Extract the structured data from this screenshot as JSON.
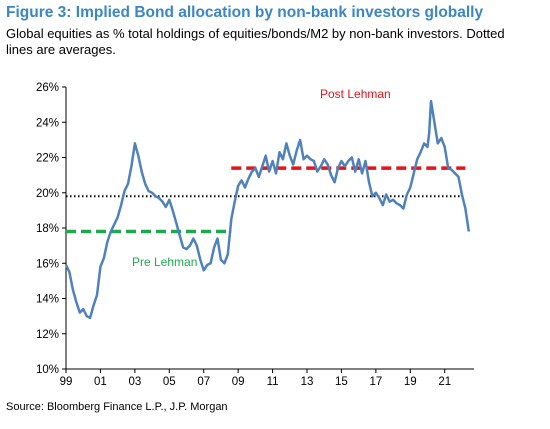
{
  "title": "Figure 3: Implied Bond allocation by non-bank investors globally",
  "subtitle": "Global equities as % total holdings of equities/bonds/M2 by non-bank investors. Dotted lines are averages.",
  "source": "Source: Bloomberg Finance L.P., J.P. Morgan",
  "colors": {
    "title": "#3b86c6",
    "series": "#4f81bd",
    "post": "#e3141b",
    "pre": "#1fa84f",
    "avg": "#000000"
  },
  "chart_data": {
    "type": "line",
    "title": "Figure 3: Implied Bond allocation by non-bank investors globally",
    "xlabel": "",
    "ylabel": "",
    "xlim": [
      1999.0,
      2022.7
    ],
    "ylim": [
      10,
      26
    ],
    "y_ticks": [
      10,
      12,
      14,
      16,
      18,
      20,
      22,
      24,
      26
    ],
    "y_tick_labels": [
      "10%",
      "12%",
      "14%",
      "16%",
      "18%",
      "20%",
      "22%",
      "24%",
      "26%"
    ],
    "x_ticks": [
      1999,
      2001,
      2003,
      2005,
      2007,
      2009,
      2011,
      2013,
      2015,
      2017,
      2019,
      2021
    ],
    "x_tick_labels": [
      "99",
      "01",
      "03",
      "05",
      "07",
      "09",
      "11",
      "13",
      "15",
      "17",
      "19",
      "21"
    ],
    "grid": false,
    "series": [
      {
        "x": [
          1999.0,
          1999.2,
          1999.4,
          1999.6,
          1999.8,
          2000.0,
          2000.2,
          2000.4,
          2000.6,
          2000.8,
          2001.0,
          2001.2,
          2001.4,
          2001.6,
          2001.8,
          2002.0,
          2002.2,
          2002.4,
          2002.6,
          2002.8,
          2003.0,
          2003.2,
          2003.4,
          2003.6,
          2003.8,
          2004.0,
          2004.2,
          2004.4,
          2004.6,
          2004.8,
          2005.0,
          2005.2,
          2005.4,
          2005.6,
          2005.8,
          2006.0,
          2006.2,
          2006.4,
          2006.6,
          2006.8,
          2007.0,
          2007.2,
          2007.4,
          2007.6,
          2007.8,
          2008.0,
          2008.2,
          2008.4,
          2008.6,
          2008.8,
          2009.0,
          2009.2,
          2009.4,
          2009.6,
          2009.8,
          2010.0,
          2010.2,
          2010.4,
          2010.6,
          2010.8,
          2011.0,
          2011.2,
          2011.4,
          2011.6,
          2011.8,
          2012.0,
          2012.2,
          2012.4,
          2012.6,
          2012.8,
          2013.0,
          2013.2,
          2013.4,
          2013.6,
          2013.8,
          2014.0,
          2014.2,
          2014.4,
          2014.6,
          2014.8,
          2015.0,
          2015.2,
          2015.4,
          2015.6,
          2015.8,
          2016.0,
          2016.2,
          2016.4,
          2016.6,
          2016.8,
          2017.0,
          2017.2,
          2017.4,
          2017.6,
          2017.8,
          2018.0,
          2018.2,
          2018.4,
          2018.6,
          2018.8,
          2019.0,
          2019.2,
          2019.4,
          2019.6,
          2019.8,
          2020.0,
          2020.1,
          2020.2,
          2020.4,
          2020.6,
          2020.8,
          2021.0,
          2021.2,
          2021.4,
          2021.6,
          2021.8,
          2022.0,
          2022.2,
          2022.4
        ],
        "y": [
          15.9,
          15.5,
          14.5,
          13.8,
          13.2,
          13.4,
          13.0,
          12.9,
          13.6,
          14.2,
          15.8,
          16.3,
          17.2,
          17.8,
          18.2,
          18.6,
          19.3,
          20.1,
          20.5,
          21.5,
          22.8,
          22.1,
          21.2,
          20.5,
          20.1,
          20.0,
          19.8,
          19.7,
          19.5,
          19.2,
          19.6,
          19.0,
          18.3,
          17.6,
          16.9,
          16.8,
          17.0,
          17.4,
          17.0,
          16.2,
          15.6,
          15.9,
          16.0,
          16.9,
          17.4,
          16.2,
          16.0,
          16.5,
          18.5,
          19.5,
          20.4,
          20.7,
          20.3,
          20.8,
          21.2,
          21.4,
          20.9,
          21.5,
          22.1,
          21.2,
          21.8,
          21.1,
          22.3,
          21.9,
          22.8,
          22.1,
          21.6,
          22.4,
          23.0,
          21.9,
          22.1,
          21.9,
          21.8,
          21.2,
          21.5,
          21.9,
          21.6,
          21.0,
          20.6,
          21.4,
          21.8,
          21.5,
          21.8,
          22.0,
          21.2,
          21.9,
          21.1,
          21.8,
          20.6,
          19.8,
          20.0,
          19.7,
          19.3,
          19.9,
          19.5,
          19.6,
          19.4,
          19.3,
          19.1,
          19.9,
          20.3,
          21.1,
          21.9,
          22.3,
          22.8,
          22.6,
          23.4,
          25.2,
          24.0,
          22.8,
          23.1,
          22.6,
          21.4,
          21.3,
          21.1,
          20.9,
          19.9,
          19.1,
          17.8
        ]
      }
    ],
    "averages": {
      "overall": 19.8,
      "pre_lehman": 17.8,
      "post_lehman": 21.4
    },
    "annotations": [
      "Post Lehman",
      "Pre Lehman"
    ]
  }
}
